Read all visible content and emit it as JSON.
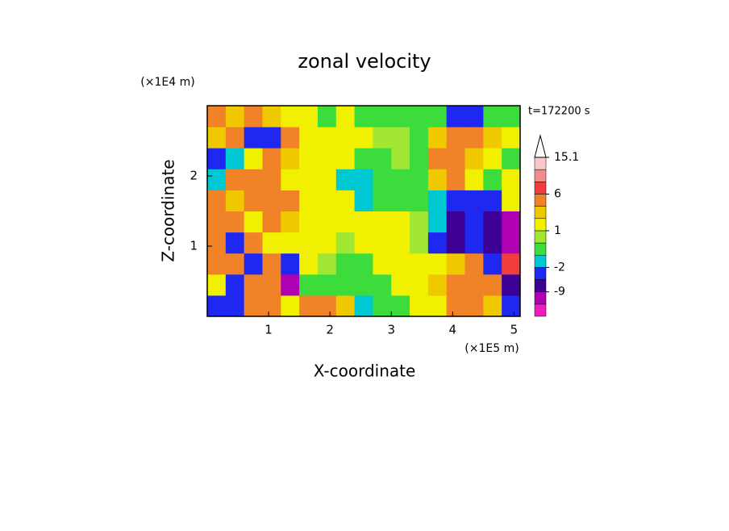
{
  "chart_data": {
    "type": "contour",
    "title": "zonal velocity",
    "x_label": "X-coordinate",
    "y_label": "Z-coordinate",
    "x_unit": "(×1E5 m)",
    "y_unit": "(×1E4 m)",
    "time_label": "t=172200 s",
    "xlim": [
      0,
      5.1
    ],
    "ylim": [
      0,
      3
    ],
    "xticks": [
      1,
      2,
      3,
      4,
      5
    ],
    "yticks": [
      1,
      2
    ],
    "x": [
      0.15,
      0.45,
      0.75,
      1.05,
      1.35,
      1.65,
      1.95,
      2.25,
      2.55,
      2.85,
      3.15,
      3.45,
      3.75,
      4.05,
      4.35,
      4.65,
      4.95
    ],
    "z": [
      0.15,
      0.45,
      0.75,
      1.05,
      1.35,
      1.65,
      1.95,
      2.25,
      2.55,
      2.85
    ],
    "field": [
      [
        -4,
        -4,
        4,
        4,
        1.5,
        3,
        4,
        2.5,
        -1.5,
        -0.5,
        -0.5,
        1.5,
        1.5,
        4,
        4,
        2.5,
        -4
      ],
      [
        1.5,
        -4,
        3,
        4,
        -10,
        -0.5,
        -0.5,
        -0.5,
        -0.5,
        -0.5,
        1.5,
        1.5,
        2.5,
        4,
        4,
        4,
        -7
      ],
      [
        4,
        3,
        -4,
        4,
        -4,
        1.5,
        0.5,
        -0.5,
        -0.5,
        1.5,
        1.5,
        1.5,
        1.5,
        2.5,
        4,
        -4,
        7
      ],
      [
        4,
        -4,
        4,
        1.5,
        1.5,
        1.5,
        1.5,
        0.5,
        1.5,
        1.5,
        1.5,
        0.5,
        -4,
        -7,
        -4,
        -7,
        -10
      ],
      [
        3,
        4,
        1.5,
        4,
        2.5,
        1.5,
        1.5,
        1.5,
        1.5,
        1.5,
        1.5,
        0.5,
        -1.5,
        -7,
        -4,
        -7,
        -10
      ],
      [
        4,
        2.5,
        4,
        3,
        4,
        1.5,
        1.5,
        1.5,
        -1.5,
        -0.5,
        -0.5,
        -0.5,
        -1.5,
        -4,
        -4,
        -4,
        1.5
      ],
      [
        -1.5,
        4,
        3,
        4,
        1.5,
        1.5,
        1.5,
        -1.5,
        -1.5,
        -0.5,
        -0.5,
        -0.5,
        2.5,
        4,
        1.5,
        -0.5,
        1.5
      ],
      [
        -4,
        -1.5,
        1.5,
        4,
        2.5,
        1.5,
        1.5,
        1.5,
        -0.5,
        -0.5,
        0.5,
        -0.5,
        4,
        4,
        2.5,
        1.5,
        -0.5
      ],
      [
        2.5,
        4,
        -4,
        -4,
        4,
        1.5,
        1.5,
        1.5,
        1.5,
        0.5,
        0.5,
        -0.5,
        2.5,
        4,
        4,
        2.5,
        1.5
      ],
      [
        4,
        2.5,
        4,
        2.5,
        1.5,
        1.5,
        -0.5,
        1.5,
        -0.5,
        -0.5,
        -0.5,
        -0.5,
        -0.5,
        -4,
        -4,
        -0.5,
        -0.5
      ]
    ],
    "colorbar": {
      "levels": [
        -12,
        -9,
        -6,
        -2,
        -1,
        0,
        1,
        2,
        3,
        6,
        9,
        12,
        15.1
      ],
      "colors": [
        "#f01cc0",
        "#b000b4",
        "#3c0096",
        "#1e28f0",
        "#00c8d2",
        "#3cdc3c",
        "#a0e632",
        "#f0f000",
        "#f0c800",
        "#f08228",
        "#f03c3c",
        "#f08c8c",
        "#f8c8c8",
        "#ffffff"
      ],
      "ticks": [
        15.1,
        6,
        1,
        -2,
        -9
      ]
    }
  }
}
